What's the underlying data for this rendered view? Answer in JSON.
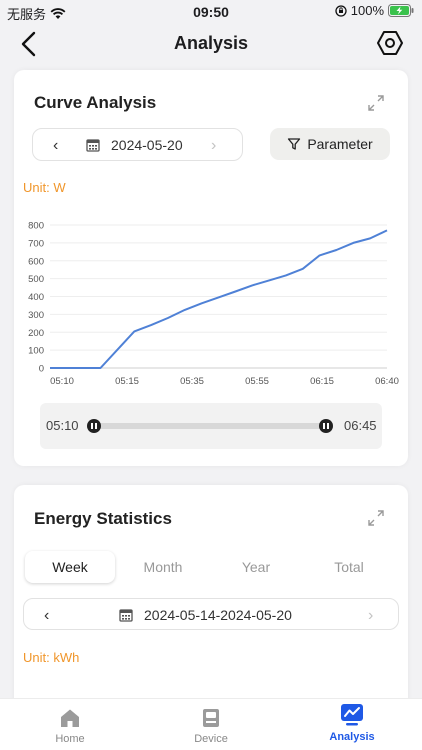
{
  "status_bar": {
    "carrier": "无服务",
    "time": "09:50",
    "battery": "100%"
  },
  "nav": {
    "title": "Analysis"
  },
  "curve_card": {
    "title": "Curve Analysis",
    "date": "2024-05-20",
    "parameter_label": "Parameter",
    "unit": "Unit: W",
    "range_start": "05:10",
    "range_end": "06:45"
  },
  "chart_data": {
    "type": "line",
    "xlabel": "",
    "ylabel": "",
    "ylim": [
      0,
      800
    ],
    "y_ticks": [
      "0",
      "100",
      "200",
      "300",
      "400",
      "500",
      "600",
      "700",
      "800"
    ],
    "x_ticks": [
      "05:10",
      "05:15",
      "05:35",
      "05:55",
      "06:15",
      "06:40"
    ],
    "grid": true,
    "series": [
      {
        "name": "",
        "color": "#4f81d6",
        "points": [
          [
            0,
            0
          ],
          [
            1.5,
            0
          ],
          [
            2.5,
            205
          ],
          [
            3.0,
            240
          ],
          [
            3.5,
            280
          ],
          [
            4.0,
            325
          ],
          [
            4.5,
            362
          ],
          [
            5.0,
            395
          ],
          [
            5.5,
            428
          ],
          [
            6.0,
            462
          ],
          [
            6.5,
            490
          ],
          [
            7.0,
            518
          ],
          [
            7.5,
            555
          ],
          [
            8.0,
            630
          ],
          [
            8.5,
            660
          ],
          [
            9.0,
            700
          ],
          [
            9.5,
            725
          ],
          [
            10.0,
            770
          ]
        ]
      }
    ]
  },
  "energy_card": {
    "title": "Energy Statistics",
    "tabs": [
      "Week",
      "Month",
      "Year",
      "Total"
    ],
    "active_tab": 0,
    "date_range": "2024-05-14-2024-05-20",
    "unit": "Unit: kWh"
  },
  "tab_bar": {
    "items": [
      {
        "label": "Home",
        "icon": "home-icon"
      },
      {
        "label": "Device",
        "icon": "device-icon"
      },
      {
        "label": "Analysis",
        "icon": "analysis-icon"
      }
    ],
    "active": 2,
    "accent": "#1f59e6"
  }
}
